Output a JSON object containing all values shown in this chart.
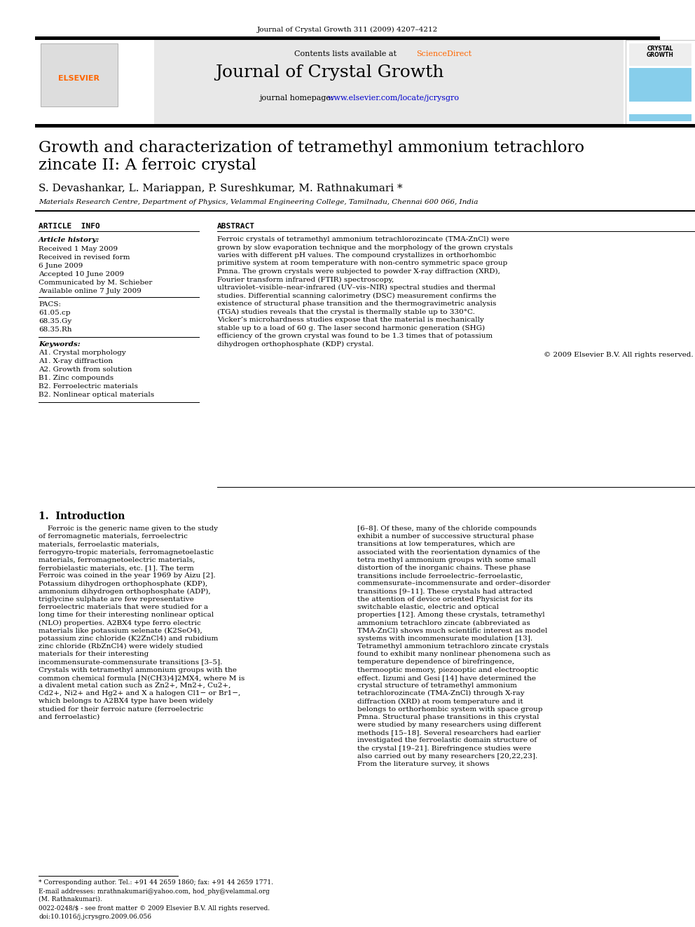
{
  "journal_line": "Journal of Crystal Growth 311 (2009) 4207–4212",
  "contents_line": "Contents lists available at ScienceDirect",
  "sciencedirect_color": "#FF6600",
  "journal_title": "Journal of Crystal Growth",
  "homepage_prefix": "journal homepage: ",
  "homepage_url": "www.elsevier.com/locate/jcrysgro",
  "homepage_color": "#0000CC",
  "paper_title_line1": "Growth and characterization of tetramethyl ammonium tetrachloro",
  "paper_title_line2": "zincate II: A ferroic crystal",
  "authors": "S. Devashankar, L. Mariappan, P. Sureshkumar, M. Rathnakumari *",
  "affiliation": "Materials Research Centre, Department of Physics, Velammal Engineering College, Tamilnadu, Chennai 600 066, India",
  "article_info_header": "ARTICLE  INFO",
  "abstract_header": "ABSTRACT",
  "article_history_label": "Article history:",
  "received": "Received 1 May 2009",
  "received_revised": "Received in revised form",
  "date_june6": "6 June 2009",
  "accepted": "Accepted 10 June 2009",
  "communicated": "Communicated by M. Schieber",
  "available": "Available online 7 July 2009",
  "pacs_header": "PACS:",
  "pacs_codes": [
    "61.05.cp",
    "68.35.Gy",
    "68.35.Rh"
  ],
  "keywords_header": "Keywords:",
  "keywords": [
    "A1. Crystal morphology",
    "A1. X-ray diffraction",
    "A2. Growth from solution",
    "B1. Zinc compounds",
    "B2. Ferroelectric materials",
    "B2. Nonlinear optical materials"
  ],
  "abstract_text": "Ferroic crystals of tetramethyl ammonium tetrachlorozincate (TMA-ZnCl) were grown by slow evaporation technique and the morphology of the grown crystals varies with different pH values. The compound crystallizes in orthorhombic primitive system at room temperature with non-centro symmetric space group Pmna. The grown crystals were subjected to powder X-ray diffraction (XRD), Fourier transform infrared (FTIR) spectroscopy, ultraviolet–visible–near-infrared (UV–vis–NIR) spectral studies and thermal studies. Differential scanning calorimetry (DSC) measurement confirms the existence of structural phase transition and the thermogravimetric analysis (TGA) studies reveals that the crystal is thermally stable up to 330°C. Vicker’s microhardness studies expose that the material is mechanically stable up to a load of 60 g. The laser second harmonic generation (SHG) efficiency of the grown crystal was found to be 1.3 times that of potassium dihydrogen orthophosphate (KDP) crystal.",
  "copyright_line": "© 2009 Elsevier B.V. All rights reserved.",
  "intro_header": "1.  Introduction",
  "intro_col1": "Ferroic is the generic name given to the study of ferromagnetic materials, ferroelectric materials, ferroelastic materials, ferrogyro-tropic materials, ferromagnetoelastic materials, ferromagnetoelectric materials, ferrobielastic materials, etc. [1]. The term Ferroic was coined in the year 1969 by Aizu [2]. Potassium dihydrogen orthophosphate (KDP), ammonium dihydrogen orthophosphate (ADP), triglycine sulphate are few representative ferroelectric materials that were studied for a long time for their interesting nonlinear optical (NLO) properties. A2BX4 type ferro electric materials like potassium selenate (K2SeO4), potassium zinc chloride (K2ZnCl4) and rubidium zinc chloride (RbZnCl4) were widely studied materials for their interesting incommensurate-commensurate transitions [3–5]. Crystals with tetramethyl ammonium groups with the common chemical formula [N(CH3)4]2MX4, where M is a divalent metal cation such as Zn2+, Mn2+, Cu2+, Cd2+, Ni2+ and Hg2+ and X a halogen Cl1− or Br1−, which belongs to A2BX4 type have been widely studied for their ferroic nature (ferroelectric and ferroelastic)",
  "intro_col2": "[6–8]. Of these, many of the chloride compounds exhibit a number of successive structural phase transitions at low temperatures, which are associated with the reorientation dynamics of the tetra methyl ammonium groups with some small distortion of the inorganic chains. These phase transitions include ferroelectric–ferroelastic, commensurate–incommensurate and order–disorder transitions [9–11]. These crystals had attracted the attention of device oriented Physicist for its switchable elastic, electric and optical properties [12]. Among these crystals, tetramethyl ammonium tetrachloro zincate (abbreviated as TMA-ZnCl) shows much scientific interest as model systems with incommensurate modulation [13].\n    Tetramethyl ammonium tetrachloro zincate crystals found to exhibit many nonlinear phenomena such as temperature dependence of birefringence, thermooptic memory, piezooptic and electrooptic effect. Iizumi and Gesi [14] have determined the crystal structure of tetramethyl ammonium tetrachlorozincate (TMA-ZnCl) through X-ray diffraction (XRD) at room temperature and it belongs to orthorhombic system with space group Pmna. Structural phase transitions in this crystal were studied by many researchers using different methods [15–18]. Several researchers had earlier investigated the ferroelastic domain structure of the crystal [19–21]. Birefringence studies were also carried out by many researchers [20,22,23]. From the literature survey, it shows",
  "footnote_star": "* Corresponding author. Tel.: +91 44 2659 1860; fax: +91 44 2659 1771.",
  "footnote_email": "E-mail addresses: mrathnakumari@yahoo.com, hod_phy@velammal.org",
  "footnote_email2": "(M. Rathnakumari).",
  "issn_line": "0022-0248/$ - see front matter © 2009 Elsevier B.V. All rights reserved.",
  "doi_line": "doi:10.1016/j.jcrysgro.2009.06.056",
  "header_bg_color": "#E8E8E8",
  "elsevier_orange": "#FF6600",
  "link_blue": "#0000CC",
  "sidebar_blue": "#87CEEB",
  "crystal_growth_label": "CRYSTAL\nGROWTH"
}
